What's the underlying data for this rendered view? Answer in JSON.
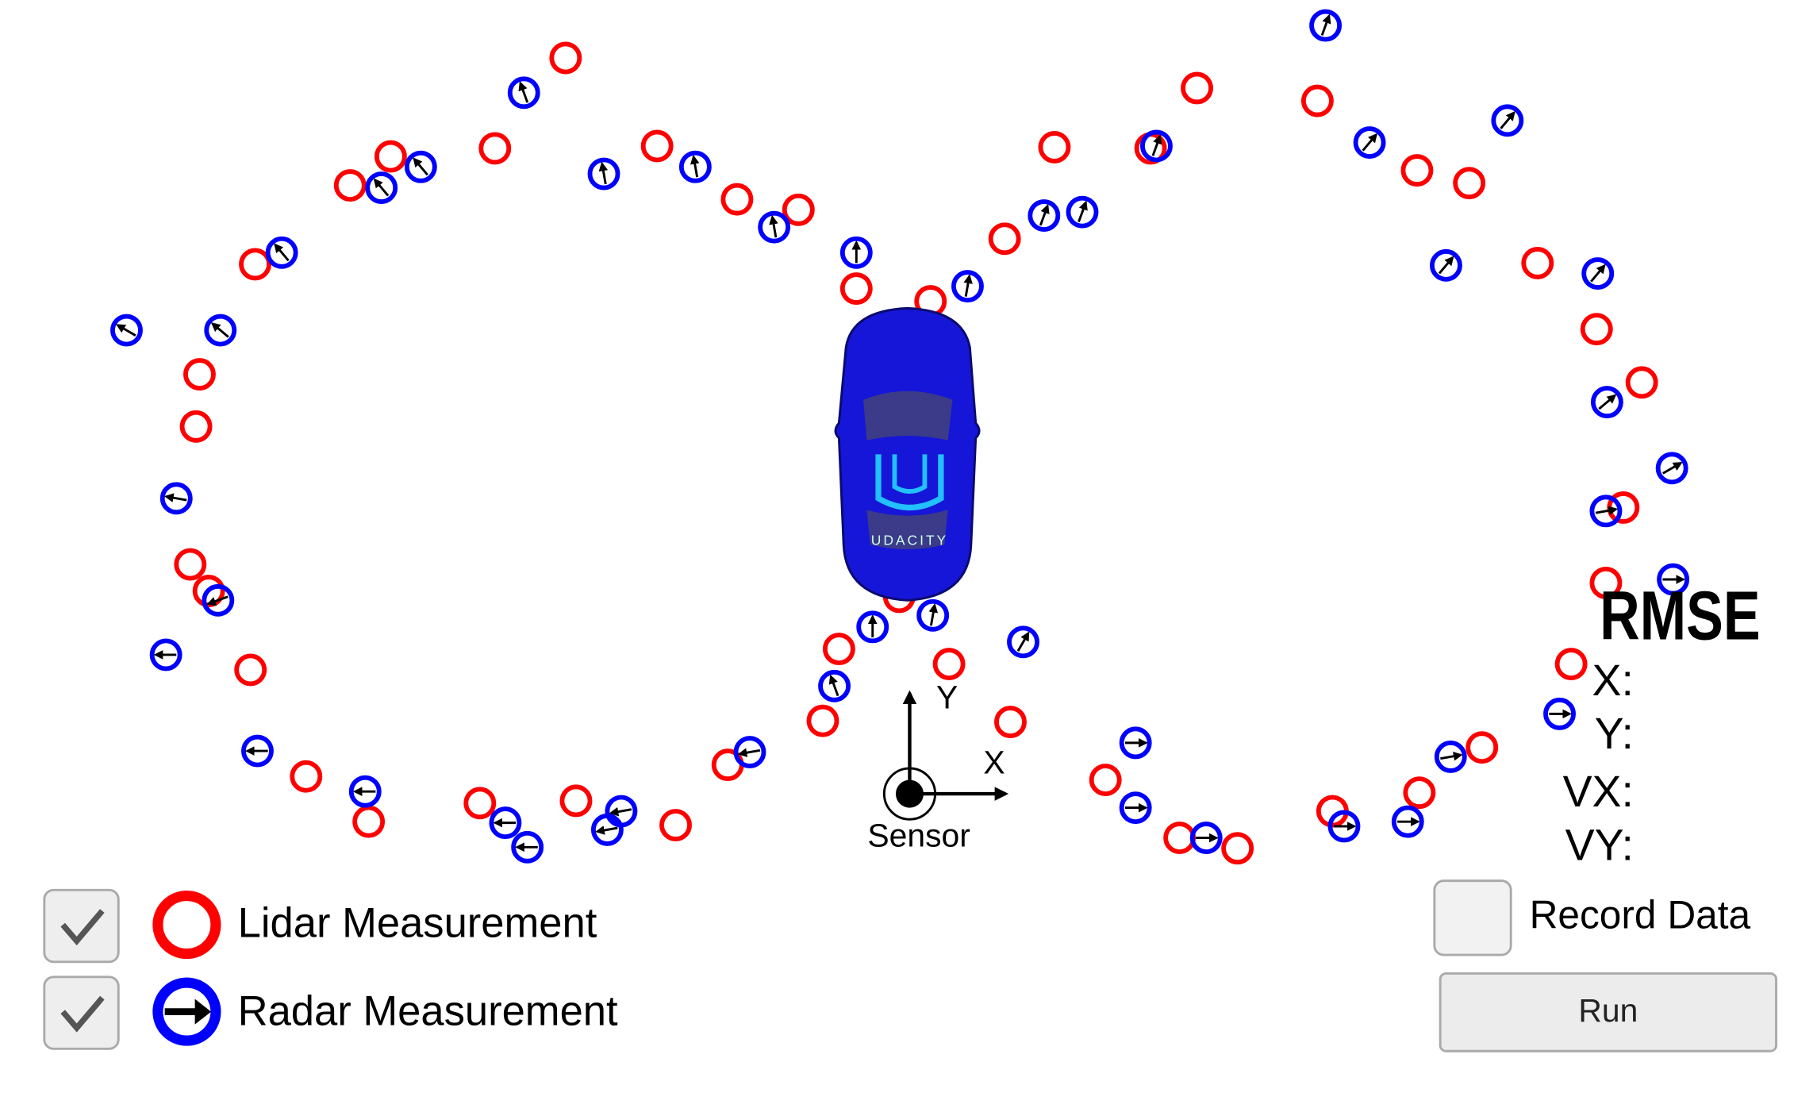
{
  "legend": {
    "lidar": "Lidar Measurement",
    "radar": "Radar Measurement"
  },
  "rmse": {
    "title": "RMSE",
    "labels": [
      "X:",
      "Y:",
      "VX:",
      "VY:"
    ]
  },
  "axes": {
    "x": "X",
    "y": "Y",
    "origin": "Sensor"
  },
  "car": {
    "logo": "UDACITY"
  },
  "controls": {
    "record": "Record Data",
    "run": "Run"
  }
}
